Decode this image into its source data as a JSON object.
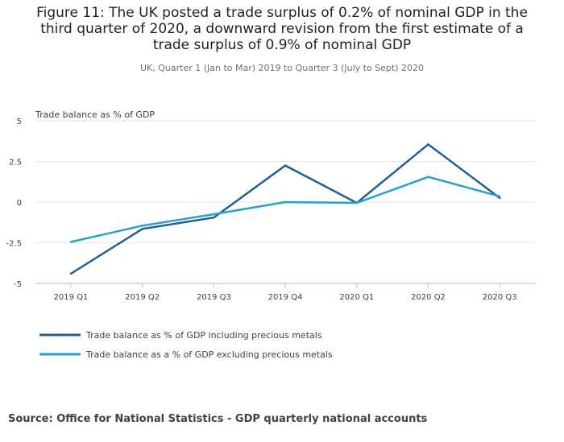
{
  "chart_data": {
    "type": "line",
    "title_lines": [
      "Figure 11: The UK posted a trade surplus of 0.2% of nominal GDP in the",
      "third quarter of 2020, a downward revision from the first estimate of a",
      "trade surplus of 0.9% of nominal GDP"
    ],
    "subtitle": "UK, Quarter 1 (Jan to Mar) 2019 to Quarter 3 (July to Sept) 2020",
    "ylabel": "Trade balance as % of GDP",
    "categories": [
      "2019 Q1",
      "2019 Q2",
      "2019 Q3",
      "2019 Q4",
      "2020 Q1",
      "2020 Q2",
      "2020 Q3"
    ],
    "ylim": [
      -5,
      5
    ],
    "yticks": [
      5,
      2.5,
      0,
      -2.5,
      -5
    ],
    "ytick_labels": [
      "5",
      "2.5",
      "0",
      "-2.5",
      "-5"
    ],
    "grid": true,
    "series": [
      {
        "name": "Trade balance as % of GDP including precious metals",
        "color": "#206095",
        "values": [
          -4.4,
          -1.65,
          -0.95,
          2.25,
          -0.05,
          3.55,
          0.25
        ]
      },
      {
        "name": "Trade balance as a % of GDP excluding precious metals",
        "color": "#27a0cc",
        "values": [
          -2.45,
          -1.45,
          -0.75,
          0.0,
          -0.05,
          1.55,
          0.35
        ]
      }
    ]
  },
  "source": "Source: Office for National Statistics - GDP quarterly national accounts"
}
